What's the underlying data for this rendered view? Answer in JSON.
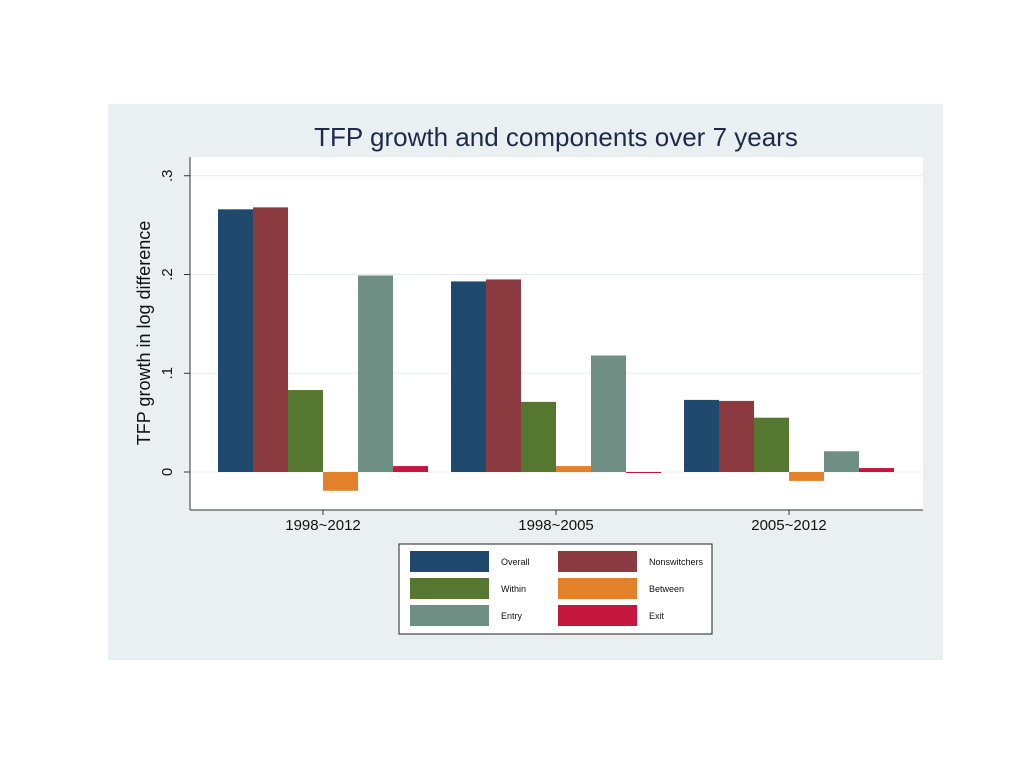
{
  "chart_data": {
    "type": "bar",
    "title": "TFP growth and components over 7 years",
    "xlabel": "",
    "ylabel": "TFP growth in log difference",
    "categories": [
      "1998~2012",
      "1998~2005",
      "2005~2012"
    ],
    "ylim": [
      -0.04,
      0.32
    ],
    "yticks": [
      0,
      0.1,
      0.2,
      0.3
    ],
    "ytick_labels": [
      "0",
      ".1",
      ".2",
      ".3"
    ],
    "grid": true,
    "legend_position": "bottom",
    "series": [
      {
        "name": "Overall",
        "color": "#1f4a6e",
        "values": [
          0.266,
          0.193,
          0.073
        ]
      },
      {
        "name": "Nonswitchers",
        "color": "#8b3a40",
        "values": [
          0.268,
          0.195,
          0.072
        ]
      },
      {
        "name": "Within",
        "color": "#56772f",
        "values": [
          0.083,
          0.071,
          0.055
        ]
      },
      {
        "name": "Between",
        "color": "#e3812a",
        "values": [
          -0.019,
          0.006,
          -0.009
        ]
      },
      {
        "name": "Entry",
        "color": "#6f8f84",
        "values": [
          0.199,
          0.118,
          0.021
        ]
      },
      {
        "name": "Exit",
        "color": "#c5173e",
        "values": [
          0.006,
          -0.001,
          0.004
        ]
      }
    ]
  },
  "colors": {
    "outer_background": "#eaf0f2",
    "plot_background": "#ffffff",
    "gridline": "#e7ecef",
    "axis": "#333333",
    "title": "#1e2a48"
  }
}
